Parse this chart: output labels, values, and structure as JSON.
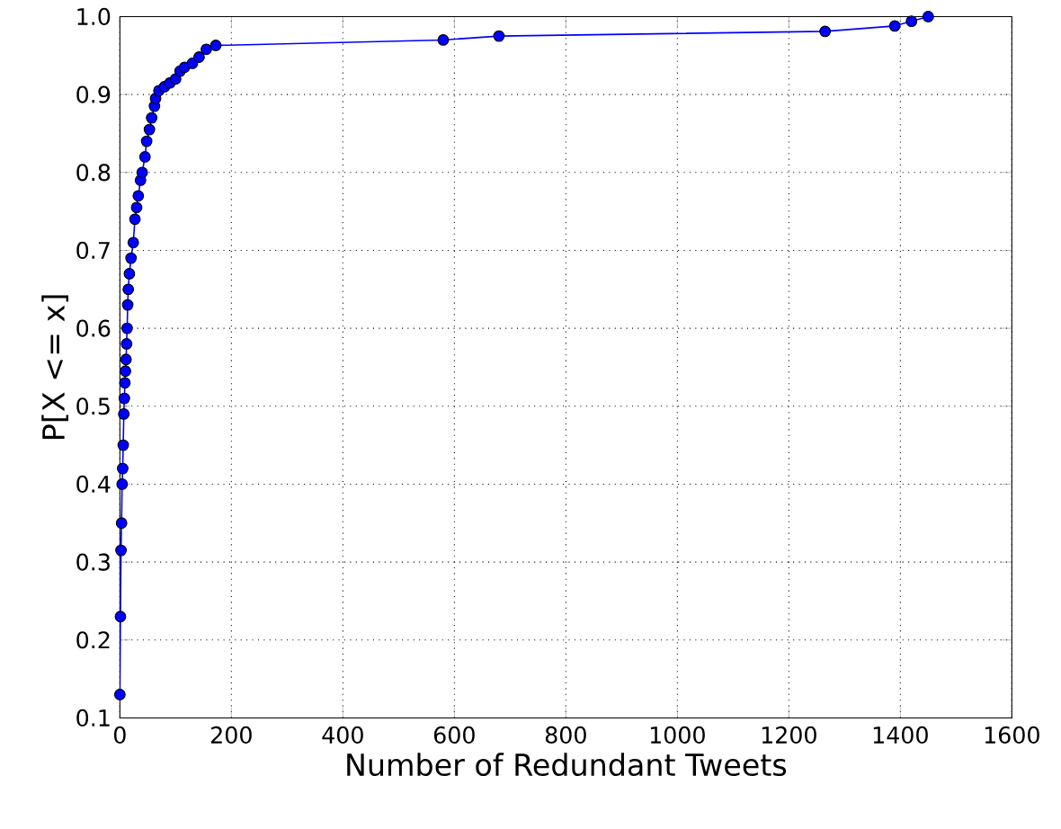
{
  "chart_data": {
    "type": "line",
    "xlabel": "Number of Redundant Tweets",
    "ylabel": "P[X <= x]",
    "x": [
      0,
      1,
      2,
      3,
      4,
      5,
      6,
      7,
      8,
      9,
      10,
      11,
      12,
      13,
      14,
      15,
      17,
      20,
      24,
      27,
      30,
      33,
      37,
      40,
      45,
      48,
      53,
      57,
      62,
      64,
      70,
      80,
      90,
      100,
      108,
      116,
      130,
      142,
      155,
      172,
      580,
      680,
      1265,
      1390,
      1420,
      1450
    ],
    "series": [
      {
        "color": "#0000ff",
        "values": [
          0.13,
          0.23,
          0.315,
          0.35,
          0.4,
          0.42,
          0.45,
          0.49,
          0.51,
          0.53,
          0.545,
          0.56,
          0.58,
          0.6,
          0.63,
          0.65,
          0.67,
          0.69,
          0.71,
          0.74,
          0.755,
          0.77,
          0.79,
          0.8,
          0.82,
          0.84,
          0.855,
          0.87,
          0.885,
          0.895,
          0.905,
          0.91,
          0.915,
          0.92,
          0.93,
          0.935,
          0.94,
          0.948,
          0.958,
          0.963,
          0.97,
          0.975,
          0.981,
          0.988,
          0.994,
          1.0
        ]
      }
    ],
    "xlim": [
      0,
      1600
    ],
    "ylim": [
      0.1,
      1.0
    ],
    "xticks": [
      0,
      200,
      400,
      600,
      800,
      1000,
      1200,
      1400,
      1600
    ],
    "yticks": [
      0.1,
      0.2,
      0.3,
      0.4,
      0.5,
      0.6,
      0.7,
      0.8,
      0.9,
      {
        "value": 1,
        "label": "1.0"
      }
    ],
    "grid": true,
    "marker": "circle",
    "line_style": "solid"
  }
}
